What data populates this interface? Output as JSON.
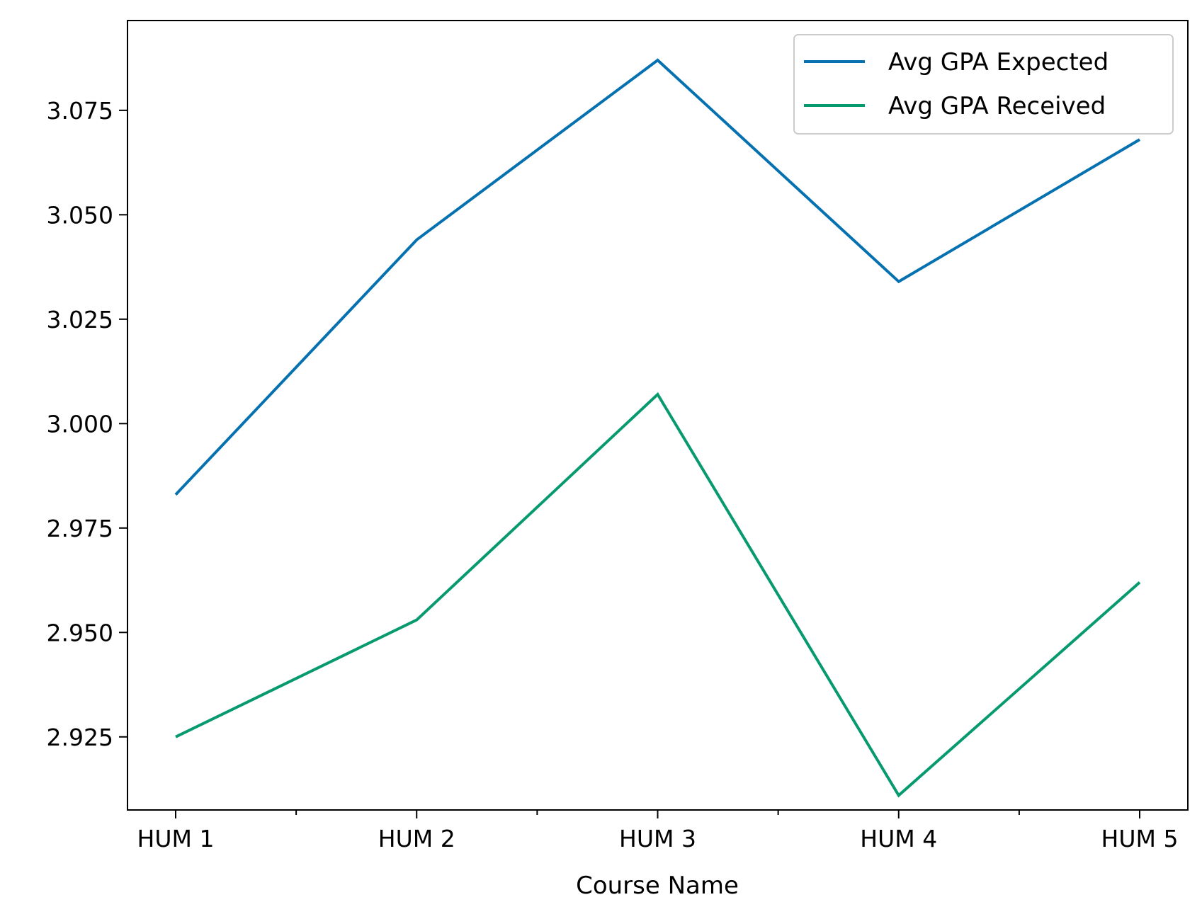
{
  "chart_data": {
    "type": "line",
    "title": "",
    "xlabel": "Course Name",
    "ylabel": "",
    "categories": [
      "HUM 1",
      "HUM 2",
      "HUM 3",
      "HUM 4",
      "HUM 5"
    ],
    "series": [
      {
        "name": "Avg GPA Expected",
        "color": "#0571b0",
        "values": [
          2.983,
          3.044,
          3.087,
          3.034,
          3.068
        ]
      },
      {
        "name": "Avg GPA Received",
        "color": "#069a6e",
        "values": [
          2.925,
          2.953,
          3.007,
          2.911,
          2.962
        ]
      }
    ],
    "ylim": [
      2.9075,
      3.0965
    ],
    "yticks": [
      2.925,
      2.95,
      2.975,
      3.0,
      3.025,
      3.05,
      3.075
    ],
    "ytick_labels": [
      "2.925",
      "2.950",
      "2.975",
      "3.000",
      "3.025",
      "3.050",
      "3.075"
    ],
    "grid": false,
    "legend_position": "top-right"
  }
}
